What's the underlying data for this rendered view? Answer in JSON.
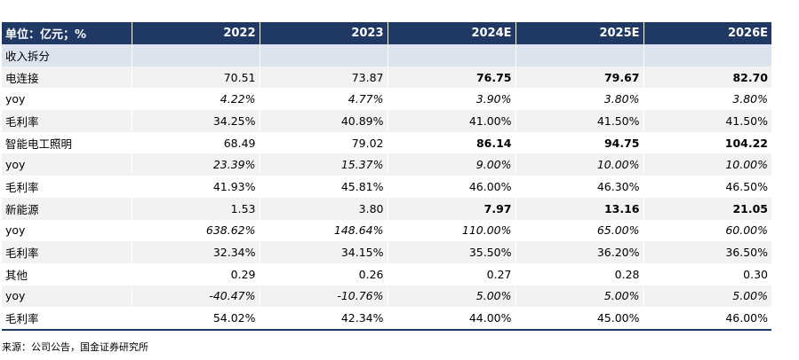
{
  "header": {
    "label": "单位：亿元；%",
    "years": [
      "2022",
      "2023",
      "2024E",
      "2025E",
      "2026E"
    ]
  },
  "section_title": "收入拆分",
  "rows": [
    {
      "label": "电连接",
      "values": [
        "70.51",
        "73.87",
        "76.75",
        "79.67",
        "82.70"
      ],
      "style": "value"
    },
    {
      "label": "yoy",
      "values": [
        "4.22%",
        "4.77%",
        "3.90%",
        "3.80%",
        "3.80%"
      ],
      "style": "growth"
    },
    {
      "label": "毛利率",
      "values": [
        "34.25%",
        "40.89%",
        "41.00%",
        "41.50%",
        "41.50%"
      ],
      "style": "margin"
    },
    {
      "label": "智能电工照明",
      "values": [
        "68.49",
        "79.02",
        "86.14",
        "94.75",
        "104.22"
      ],
      "style": "value"
    },
    {
      "label": "yoy",
      "values": [
        "23.39%",
        "15.37%",
        "9.00%",
        "10.00%",
        "10.00%"
      ],
      "style": "growth"
    },
    {
      "label": "毛利率",
      "values": [
        "41.93%",
        "45.81%",
        "46.00%",
        "46.30%",
        "46.50%"
      ],
      "style": "margin"
    },
    {
      "label": "新能源",
      "values": [
        "1.53",
        "3.80",
        "7.97",
        "13.16",
        "21.05"
      ],
      "style": "value"
    },
    {
      "label": "yoy",
      "values": [
        "638.62%",
        "148.64%",
        "110.00%",
        "65.00%",
        "60.00%"
      ],
      "style": "growth"
    },
    {
      "label": "毛利率",
      "values": [
        "32.34%",
        "34.15%",
        "35.50%",
        "36.20%",
        "36.50%"
      ],
      "style": "margin"
    },
    {
      "label": "其他",
      "values": [
        "0.29",
        "0.26",
        "0.27",
        "0.28",
        "0.30"
      ],
      "style": "plain"
    },
    {
      "label": "yoy",
      "values": [
        "-40.47%",
        "-10.76%",
        "5.00%",
        "5.00%",
        "5.00%"
      ],
      "style": "growth"
    },
    {
      "label": "毛利率",
      "values": [
        "54.02%",
        "42.34%",
        "44.00%",
        "45.00%",
        "46.00%"
      ],
      "style": "margin"
    }
  ],
  "source": "来源：公司公告，国金证券研究所",
  "colors": {
    "header_bg": "#1f3864",
    "header_text": "#ffffff",
    "row_shade": "#f2f2f2",
    "section_bg": "#dce3ef"
  }
}
